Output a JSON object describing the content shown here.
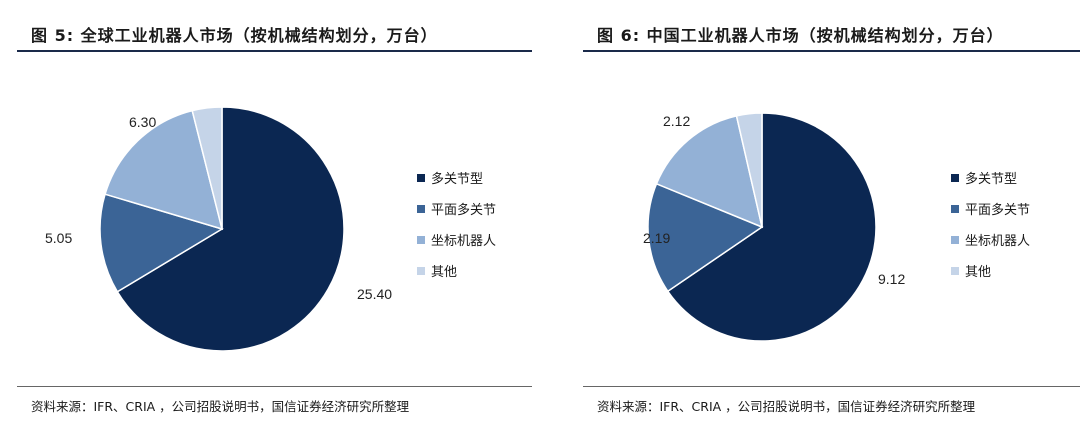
{
  "colors": {
    "multi_joint": "#0b2752",
    "scara": "#3b6496",
    "cartesian": "#93b1d6",
    "other": "#c5d4e8"
  },
  "chart_data": [
    {
      "type": "pie",
      "title": "图 5: 全球工业机器人市场（按机械结构划分，万台）",
      "categories": [
        "多关节型",
        "平面多关节",
        "坐标机器人",
        "其他"
      ],
      "values": [
        25.4,
        5.05,
        6.3,
        1.5
      ],
      "labels": [
        "25.40",
        "5.05",
        "6.30",
        ""
      ],
      "source": "资料来源：IFR、CRIA ，公司招股说明书，国信证券经济研究所整理"
    },
    {
      "type": "pie",
      "title": "图 6: 中国工业机器人市场（按机械结构划分，万台）",
      "categories": [
        "多关节型",
        "平面多关节",
        "坐标机器人",
        "其他"
      ],
      "values": [
        9.12,
        2.19,
        2.12,
        0.5
      ],
      "labels": [
        "9.12",
        "2.19",
        "2.12",
        ""
      ],
      "source": "资料来源：IFR、CRIA ，公司招股说明书，国信证券经济研究所整理"
    }
  ]
}
